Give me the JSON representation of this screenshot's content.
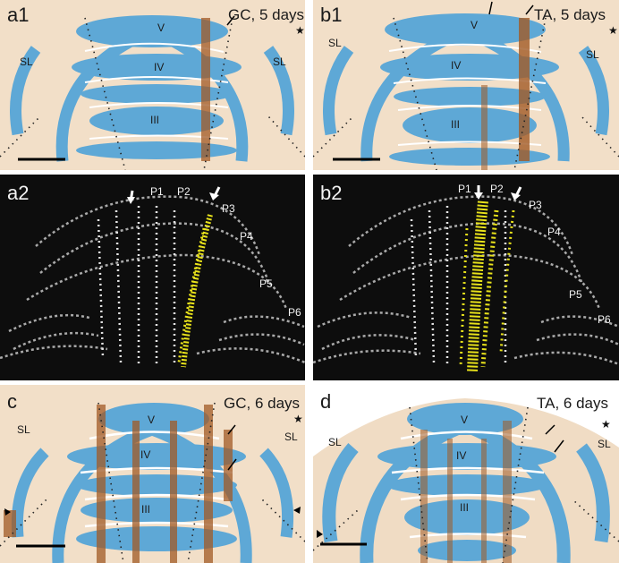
{
  "panels": {
    "a1": {
      "label": "a1",
      "title": "GC, 5 days",
      "lobules": [
        "V",
        "IV",
        "III"
      ],
      "side_label": "SL",
      "star": "★"
    },
    "b1": {
      "label": "b1",
      "title": "TA, 5 days",
      "lobules": [
        "V",
        "IV",
        "III"
      ],
      "side_label": "SL",
      "star": "★"
    },
    "a2": {
      "label": "a2",
      "stripes": [
        "P1",
        "P2",
        "P3",
        "P4",
        "P5",
        "P6"
      ]
    },
    "b2": {
      "label": "b2",
      "stripes": [
        "P1",
        "P2",
        "P3",
        "P4",
        "P5",
        "P6"
      ]
    },
    "c": {
      "label": "c",
      "title": "GC, 6 days",
      "lobules": [
        "V",
        "IV",
        "III"
      ],
      "side_label": "SL",
      "star": "★"
    },
    "d": {
      "label": "d",
      "title": "TA, 6 days",
      "lobules": [
        "V",
        "IV",
        "III"
      ],
      "side_label": "SL",
      "star": "★"
    }
  },
  "colors": {
    "tissue_background": "#efd8bd",
    "granular_layer": "#5ea8d6",
    "stain_band": "#a15a25",
    "dark_background": "#0d0d0d",
    "tracing_white": "#d9d9d9",
    "tracing_yellow": "#e8e21b"
  }
}
